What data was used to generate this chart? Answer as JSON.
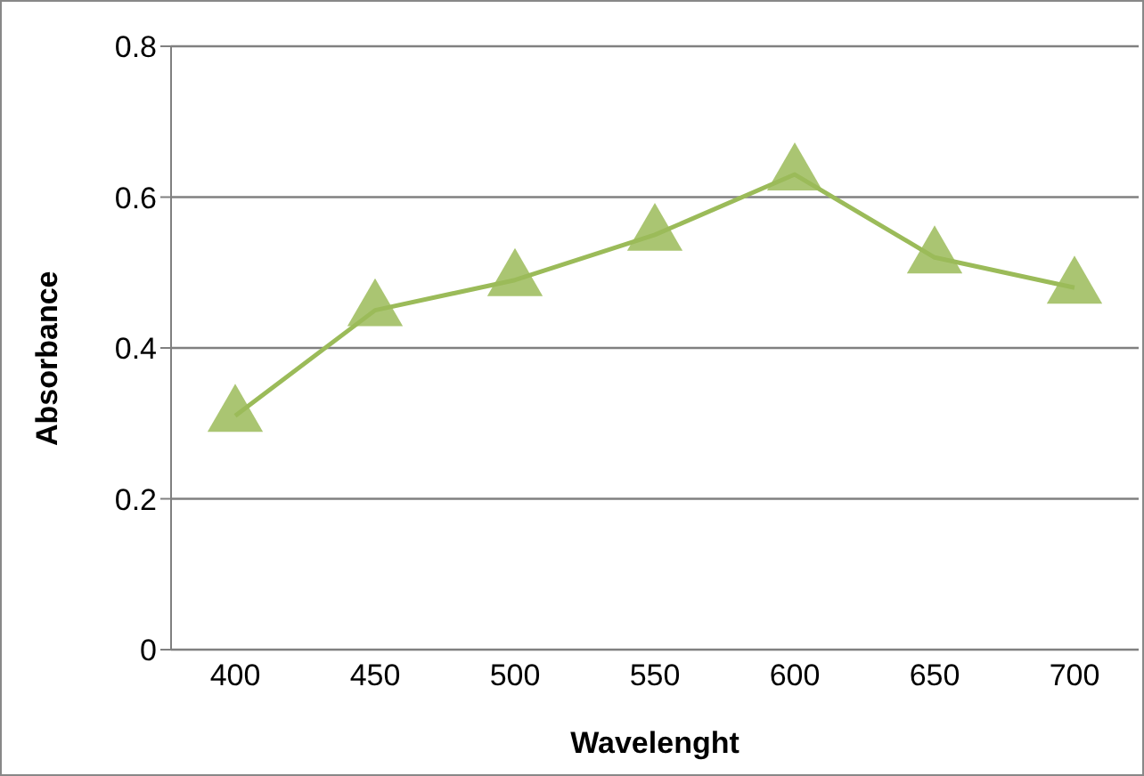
{
  "chart_data": {
    "type": "line",
    "xlabel": "Wavelenght",
    "ylabel": "Absorbance",
    "categories": [
      "400",
      "450",
      "500",
      "550",
      "600",
      "650",
      "700"
    ],
    "series": [
      {
        "color": "#9bbb59",
        "values": [
          0.31,
          0.45,
          0.49,
          0.55,
          0.63,
          0.52,
          0.48
        ]
      }
    ],
    "ylim": [
      0,
      0.8
    ],
    "yticks": [
      0,
      0.2,
      0.4,
      0.6,
      0.8
    ],
    "grid": "y",
    "marker": "triangle",
    "legend": false
  }
}
